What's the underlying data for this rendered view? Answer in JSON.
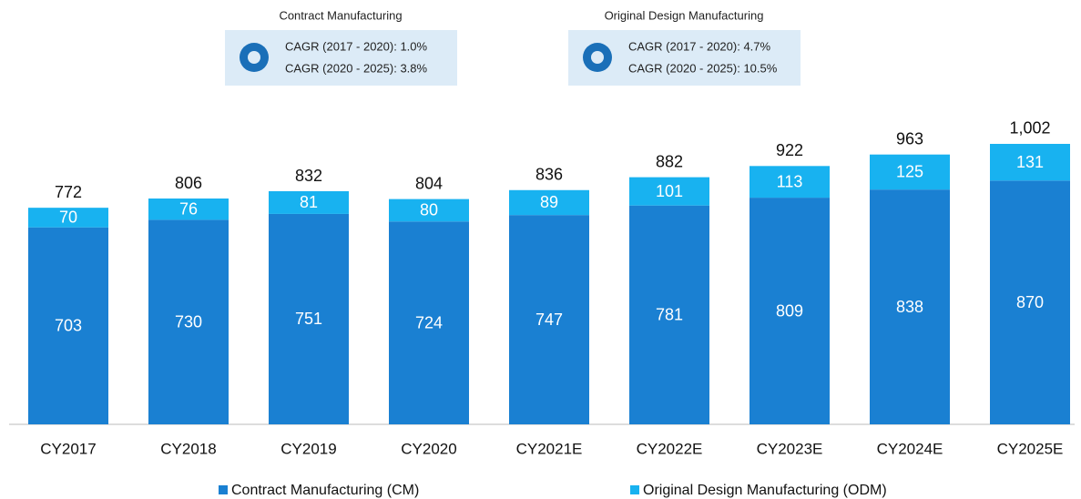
{
  "chart_data": {
    "type": "stacked_bar",
    "categories": [
      "CY2017",
      "CY2018",
      "CY2019",
      "CY2020",
      "CY2021E",
      "CY2022E",
      "CY2023E",
      "CY2024E",
      "CY2025E"
    ],
    "series": [
      {
        "name": "Contract Manufacturing (CM)",
        "color": "#1a80d2",
        "values": [
          703,
          730,
          751,
          724,
          747,
          781,
          809,
          838,
          870
        ]
      },
      {
        "name": "Original Design Manufacturing (ODM)",
        "color": "#18b2f0",
        "values": [
          70,
          76,
          81,
          80,
          89,
          101,
          113,
          125,
          131
        ]
      }
    ],
    "totals": [
      772,
      806,
      832,
      804,
      836,
      882,
      922,
      963,
      1002
    ],
    "total_labels": [
      "772",
      "806",
      "832",
      "804",
      "836",
      "882",
      "922",
      "963",
      "1,002"
    ],
    "annotations": [
      {
        "title": "Contract Manufacturing",
        "lines": [
          "CAGR (2017 - 2020): 1.0%",
          "CAGR (2020 - 2025): 3.8%"
        ]
      },
      {
        "title": "Original Design Manufacturing",
        "lines": [
          "CAGR (2017 - 2020): 4.7%",
          "CAGR (2020 - 2025): 10.5%"
        ]
      }
    ],
    "legend": "bottom"
  }
}
